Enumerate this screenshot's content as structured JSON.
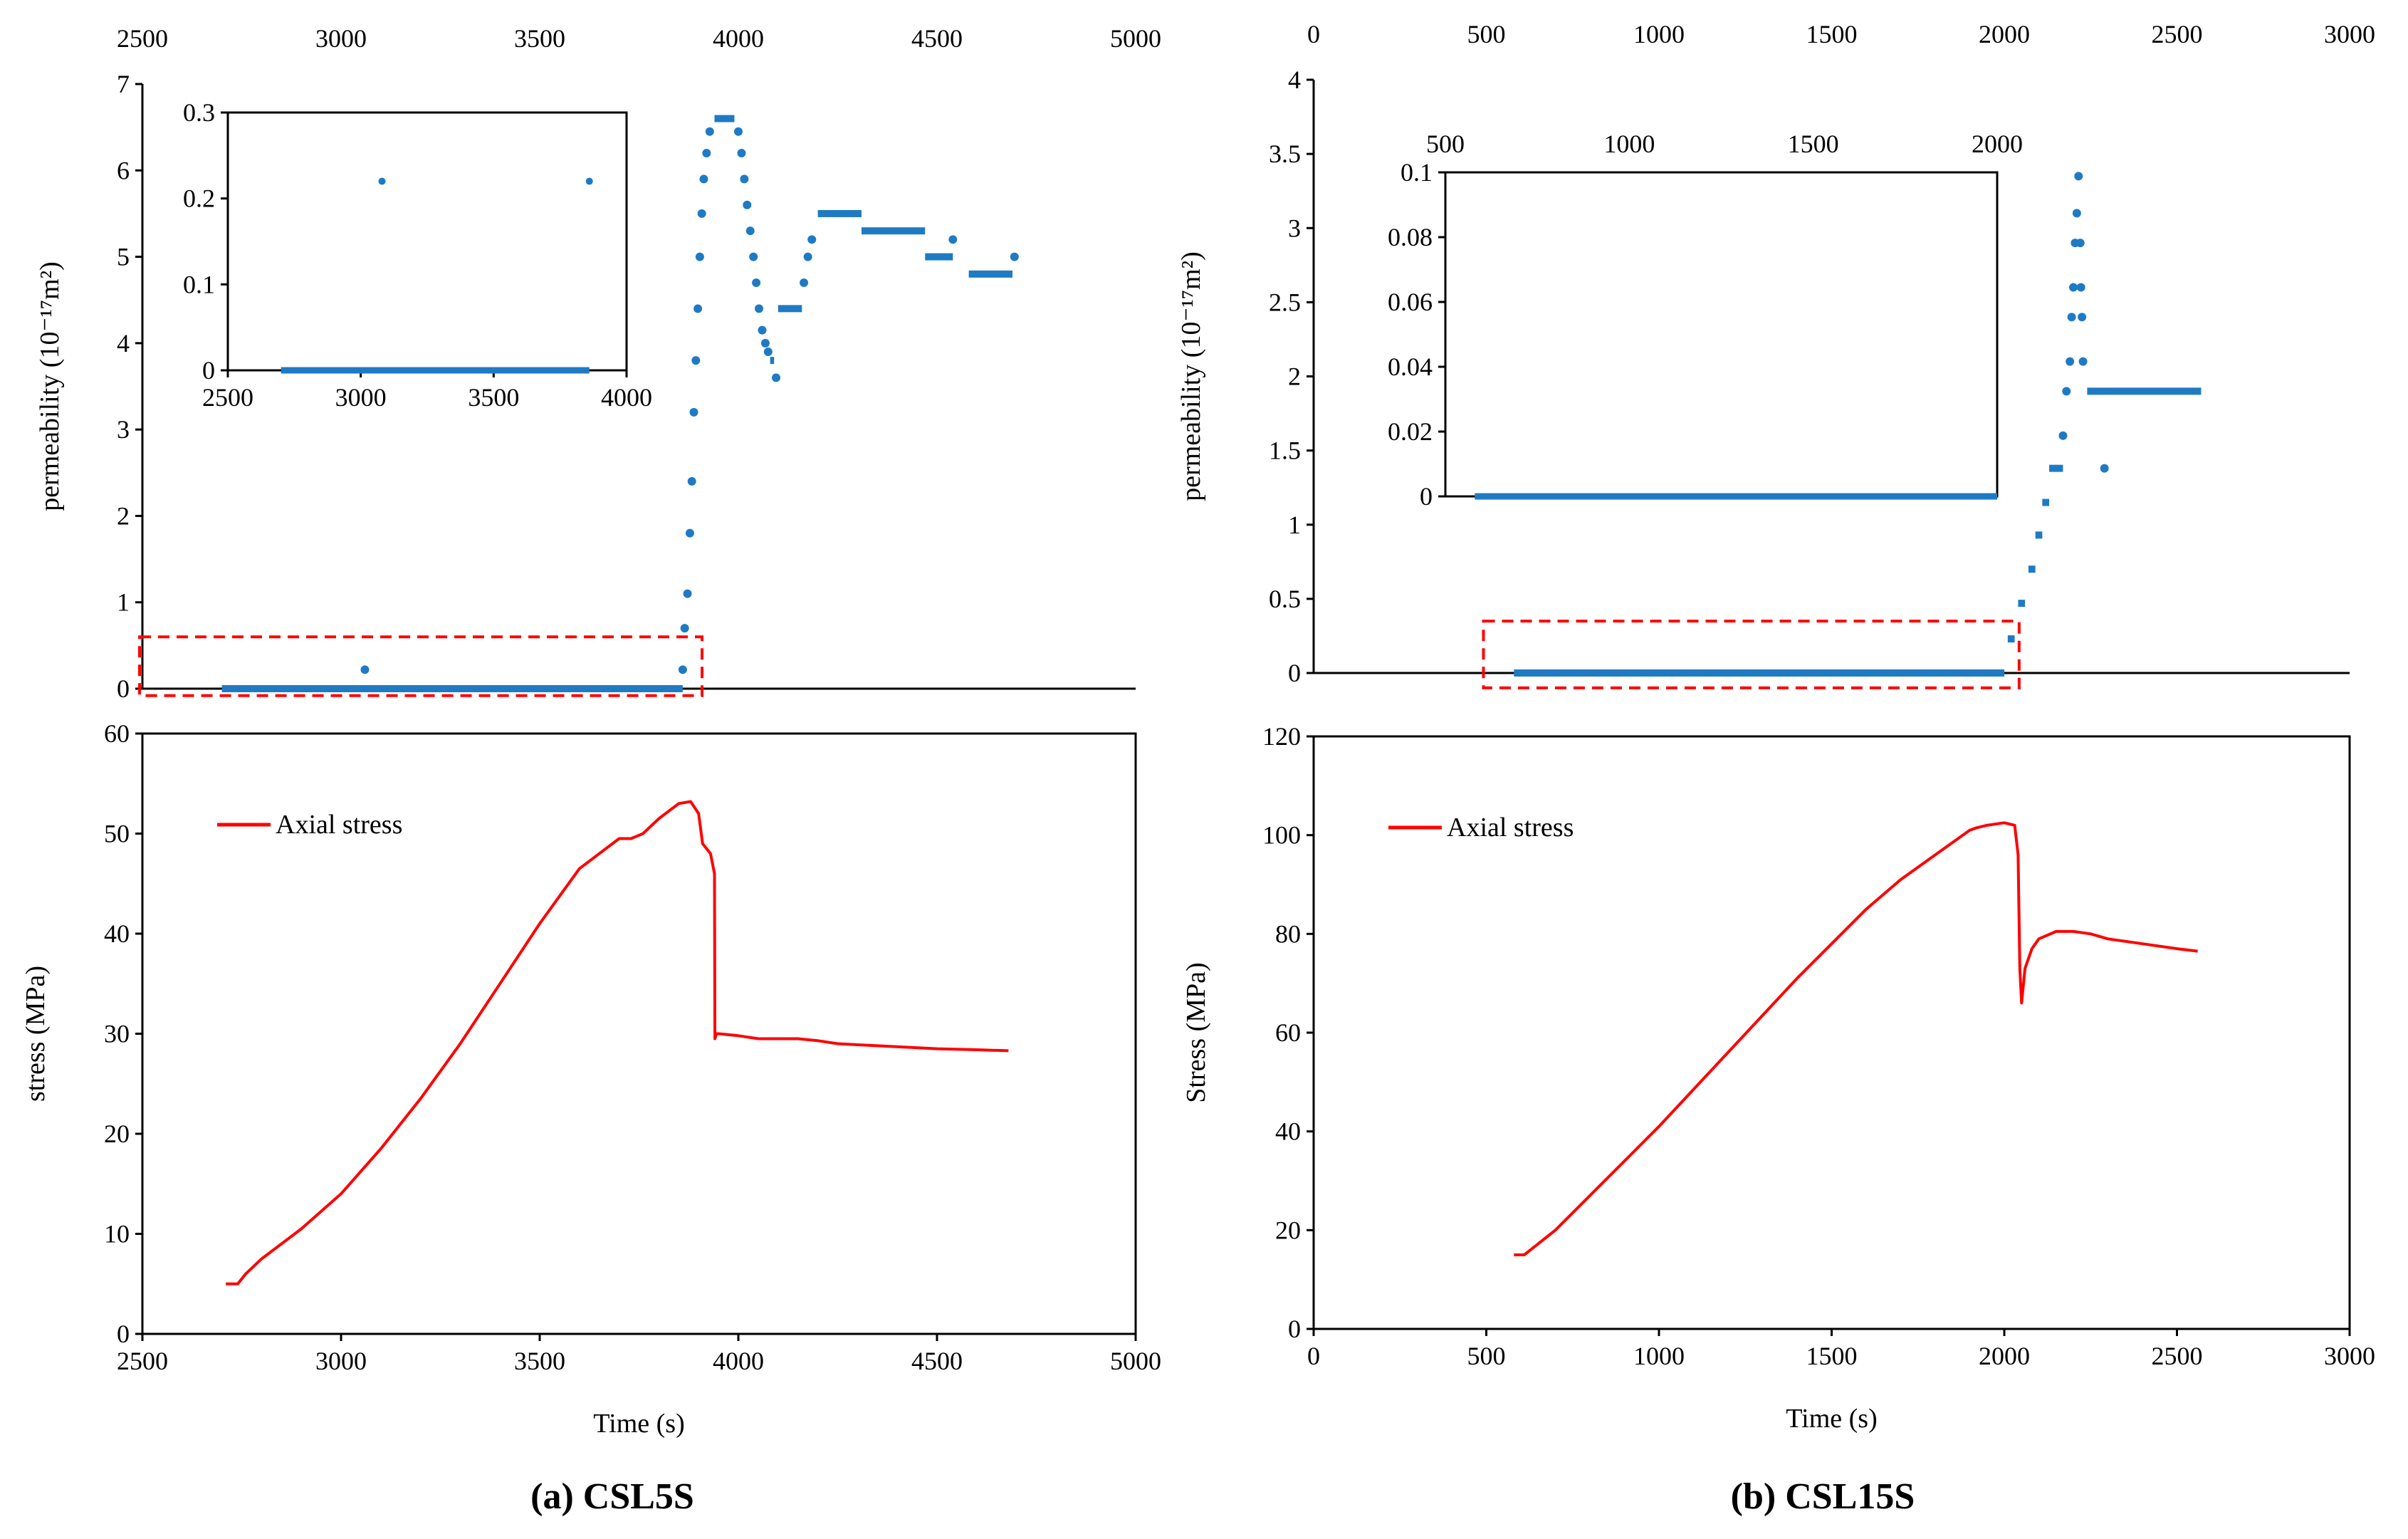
{
  "captions": {
    "left": "(a) CSL5S",
    "right": "(b) CSL15S"
  },
  "colors": {
    "permeability": "#1f7ac4",
    "stress": "#ff0000",
    "highlight_box": "#ff0000",
    "axis": "#000000"
  },
  "chart_data": [
    {
      "id": "a_perm",
      "type": "scatter",
      "panel": "(a) CSL5S",
      "ylabel": "permeability (10⁻¹⁷m²)",
      "x_axis_position": "top",
      "xlim": [
        2500,
        5000
      ],
      "ylim": [
        0,
        7
      ],
      "xticks": [
        "2500",
        "3000",
        "3500",
        "4000",
        "4500",
        "5000"
      ],
      "yticks": [
        "0",
        "1",
        "2",
        "3",
        "4",
        "5",
        "6",
        "7"
      ],
      "highlight": {
        "x": [
          2500,
          3880
        ],
        "y": [
          -0.08,
          0.6
        ]
      },
      "segments": [
        [
          2700,
          3860,
          0.0
        ],
        [
          3940,
          3990,
          6.6
        ],
        [
          4080,
          4090,
          3.8
        ],
        [
          4100,
          4160,
          4.4
        ],
        [
          4200,
          4310,
          5.5
        ],
        [
          4310,
          4470,
          5.3
        ],
        [
          4470,
          4540,
          5.0
        ],
        [
          4580,
          4690,
          4.8
        ]
      ],
      "points": [
        [
          3060,
          0.22
        ],
        [
          3860,
          0.22
        ],
        [
          3865,
          0.7
        ],
        [
          3872,
          1.1
        ],
        [
          3878,
          1.8
        ],
        [
          3883,
          2.4
        ],
        [
          3888,
          3.2
        ],
        [
          3893,
          3.8
        ],
        [
          3898,
          4.4
        ],
        [
          3903,
          5.0
        ],
        [
          3908,
          5.5
        ],
        [
          3913,
          5.9
        ],
        [
          3920,
          6.2
        ],
        [
          3928,
          6.45
        ],
        [
          4000,
          6.45
        ],
        [
          4008,
          6.2
        ],
        [
          4015,
          5.9
        ],
        [
          4022,
          5.6
        ],
        [
          4030,
          5.3
        ],
        [
          4038,
          5.0
        ],
        [
          4045,
          4.7
        ],
        [
          4052,
          4.4
        ],
        [
          4060,
          4.15
        ],
        [
          4068,
          4.0
        ],
        [
          4075,
          3.9
        ],
        [
          4095,
          3.6
        ],
        [
          4165,
          4.7
        ],
        [
          4175,
          5.0
        ],
        [
          4185,
          5.2
        ],
        [
          4540,
          5.2
        ],
        [
          4695,
          5.0
        ]
      ]
    },
    {
      "id": "a_perm_inset",
      "type": "scatter",
      "panel": "(a) CSL5S inset",
      "xlim": [
        2500,
        4000
      ],
      "ylim": [
        0,
        0.3
      ],
      "xticks": [
        "2500",
        "3000",
        "3500",
        "4000"
      ],
      "yticks": [
        "0",
        "0.1",
        "0.2",
        "0.3"
      ],
      "segments": [
        [
          2700,
          3860,
          0.0
        ]
      ],
      "points": [
        [
          3080,
          0.22
        ],
        [
          3860,
          0.22
        ]
      ]
    },
    {
      "id": "a_stress",
      "type": "line",
      "panel": "(a) CSL5S",
      "xlabel": "Time (s)",
      "ylabel": "stress (MPa)",
      "xlim": [
        2500,
        5000
      ],
      "ylim": [
        0,
        60
      ],
      "xticks": [
        "2500",
        "3000",
        "3500",
        "4000",
        "4500",
        "5000"
      ],
      "yticks": [
        "0",
        "10",
        "20",
        "30",
        "40",
        "50",
        "60"
      ],
      "legend": "Axial stress",
      "legend_position": "top-left",
      "x": [
        2710,
        2740,
        2760,
        2800,
        2900,
        3000,
        3100,
        3200,
        3300,
        3400,
        3500,
        3600,
        3700,
        3730,
        3760,
        3800,
        3850,
        3880,
        3900,
        3910,
        3930,
        3940,
        3941,
        3945,
        3950,
        4000,
        4050,
        4100,
        4150,
        4200,
        4250,
        4300,
        4400,
        4500,
        4600,
        4680
      ],
      "y": [
        5.0,
        5.0,
        6.0,
        7.5,
        10.5,
        14.0,
        18.5,
        23.5,
        29.0,
        35.0,
        41.0,
        46.5,
        49.5,
        49.5,
        50.0,
        51.5,
        53.0,
        53.2,
        52.0,
        49.0,
        48.0,
        46.0,
        29.5,
        30.0,
        30.0,
        29.8,
        29.5,
        29.5,
        29.5,
        29.3,
        29.0,
        28.9,
        28.7,
        28.5,
        28.4,
        28.3
      ]
    },
    {
      "id": "b_perm",
      "type": "scatter",
      "panel": "(b) CSL15S",
      "ylabel": "permeability (10⁻¹⁷m²)",
      "x_axis_position": "top",
      "xlim": [
        0,
        3000
      ],
      "ylim": [
        0,
        4
      ],
      "xticks": [
        "0",
        "500",
        "1000",
        "1500",
        "2000",
        "2500",
        "3000"
      ],
      "yticks": [
        "0",
        "0.5",
        "1",
        "1.5",
        "2",
        "2.5",
        "3",
        "3.5",
        "4"
      ],
      "highlight": {
        "x": [
          500,
          2010
        ],
        "y": [
          -0.1,
          0.35
        ]
      },
      "segments": [
        [
          580,
          2000,
          0.0
        ],
        [
          2010,
          2030,
          0.23
        ],
        [
          2040,
          2060,
          0.47
        ],
        [
          2070,
          2090,
          0.7
        ],
        [
          2090,
          2110,
          0.93
        ],
        [
          2110,
          2130,
          1.15
        ],
        [
          2130,
          2170,
          1.38
        ],
        [
          2240,
          2570,
          1.9
        ]
      ],
      "points": [
        [
          2170,
          1.6
        ],
        [
          2180,
          1.9
        ],
        [
          2190,
          2.1
        ],
        [
          2195,
          2.4
        ],
        [
          2200,
          2.6
        ],
        [
          2205,
          2.9
        ],
        [
          2210,
          3.1
        ],
        [
          2215,
          3.35
        ],
        [
          2220,
          2.9
        ],
        [
          2222,
          2.6
        ],
        [
          2225,
          2.4
        ],
        [
          2228,
          2.1
        ],
        [
          2290,
          1.38
        ]
      ]
    },
    {
      "id": "b_perm_inset",
      "type": "scatter",
      "panel": "(b) CSL15S inset",
      "x_axis_position": "top",
      "xlim": [
        500,
        2000
      ],
      "ylim": [
        0,
        0.1
      ],
      "xticks": [
        "500",
        "1000",
        "1500",
        "2000"
      ],
      "yticks": [
        "0",
        "0.02",
        "0.04",
        "0.06",
        "0.08",
        "0.1"
      ],
      "segments": [
        [
          580,
          2000,
          0.0
        ]
      ],
      "points": []
    },
    {
      "id": "b_stress",
      "type": "line",
      "panel": "(b) CSL15S",
      "xlabel": "Time (s)",
      "ylabel": "Stress (MPa)",
      "xlim": [
        0,
        3000
      ],
      "ylim": [
        0,
        120
      ],
      "xticks": [
        "0",
        "500",
        "1000",
        "1500",
        "2000",
        "2500",
        "3000"
      ],
      "yticks": [
        "0",
        "20",
        "40",
        "60",
        "80",
        "100",
        "120"
      ],
      "legend": "Axial stress",
      "legend_position": "top-left",
      "x": [
        580,
        610,
        700,
        800,
        900,
        1000,
        1100,
        1200,
        1300,
        1400,
        1500,
        1600,
        1700,
        1800,
        1900,
        1920,
        1950,
        2000,
        2030,
        2040,
        2045,
        2050,
        2060,
        2080,
        2100,
        2150,
        2200,
        2250,
        2300,
        2400,
        2500,
        2560
      ],
      "y": [
        15.0,
        15.0,
        20.0,
        27.0,
        34.0,
        41.0,
        48.5,
        56.0,
        63.5,
        71.0,
        78.0,
        85.0,
        91.0,
        96.0,
        101.0,
        101.5,
        102.0,
        102.5,
        102.0,
        96.0,
        73.0,
        66.0,
        73.0,
        77.0,
        79.0,
        80.5,
        80.5,
        80.0,
        79.0,
        78.0,
        77.0,
        76.5
      ]
    }
  ]
}
